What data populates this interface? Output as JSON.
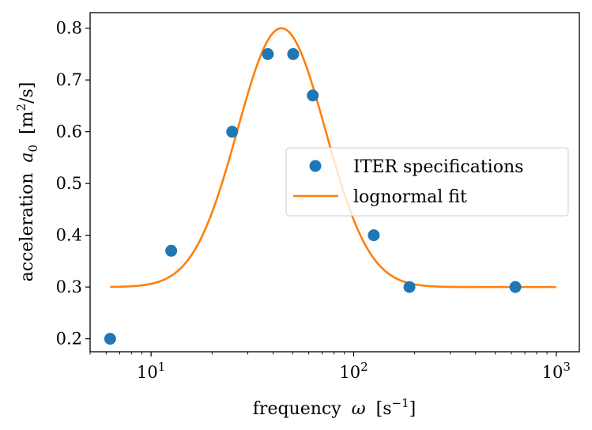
{
  "chart_data": {
    "type": "scatter",
    "title": "",
    "xlabel": "frequency",
    "xlabel_symbol": "ω",
    "xlabel_unit_open": "[s",
    "xlabel_unit_exp": "−1",
    "xlabel_unit_close": "]",
    "ylabel": "acceleration",
    "ylabel_symbol": "a",
    "ylabel_sub": "0",
    "ylabel_unit_open": "[m",
    "ylabel_unit_exp": "2",
    "ylabel_unit_close": "/s]",
    "xscale": "log",
    "xlim": [
      5,
      1300
    ],
    "ylim": [
      0.175,
      0.83
    ],
    "x_ticks": [
      {
        "value": 10,
        "base": "10",
        "exp": "1"
      },
      {
        "value": 100,
        "base": "10",
        "exp": "2"
      },
      {
        "value": 1000,
        "base": "10",
        "exp": "3"
      }
    ],
    "y_ticks": [
      {
        "value": 0.2,
        "label": "0.2"
      },
      {
        "value": 0.3,
        "label": "0.3"
      },
      {
        "value": 0.4,
        "label": "0.4"
      },
      {
        "value": 0.5,
        "label": "0.5"
      },
      {
        "value": 0.6,
        "label": "0.6"
      },
      {
        "value": 0.7,
        "label": "0.7"
      },
      {
        "value": 0.8,
        "label": "0.8"
      }
    ],
    "series": [
      {
        "name": "ITER specifications",
        "kind": "scatter",
        "color": "#1f77b4",
        "x": [
          6.28,
          12.57,
          25.13,
          37.7,
          50.27,
          62.83,
          125.66,
          188.5,
          628.3
        ],
        "y": [
          0.2,
          0.37,
          0.6,
          0.75,
          0.75,
          0.67,
          0.4,
          0.3,
          0.3
        ]
      },
      {
        "name": "lognormal fit",
        "kind": "line",
        "color": "#ff7f0e",
        "model": {
          "baseline": 0.3,
          "amplitude": 0.5,
          "center": 44,
          "log_sigma": 0.5
        },
        "x_range": [
          6.28,
          1000
        ]
      }
    ],
    "legend": {
      "placement": "center-right",
      "entries": [
        "ITER specifications",
        "lognormal fit"
      ]
    }
  }
}
